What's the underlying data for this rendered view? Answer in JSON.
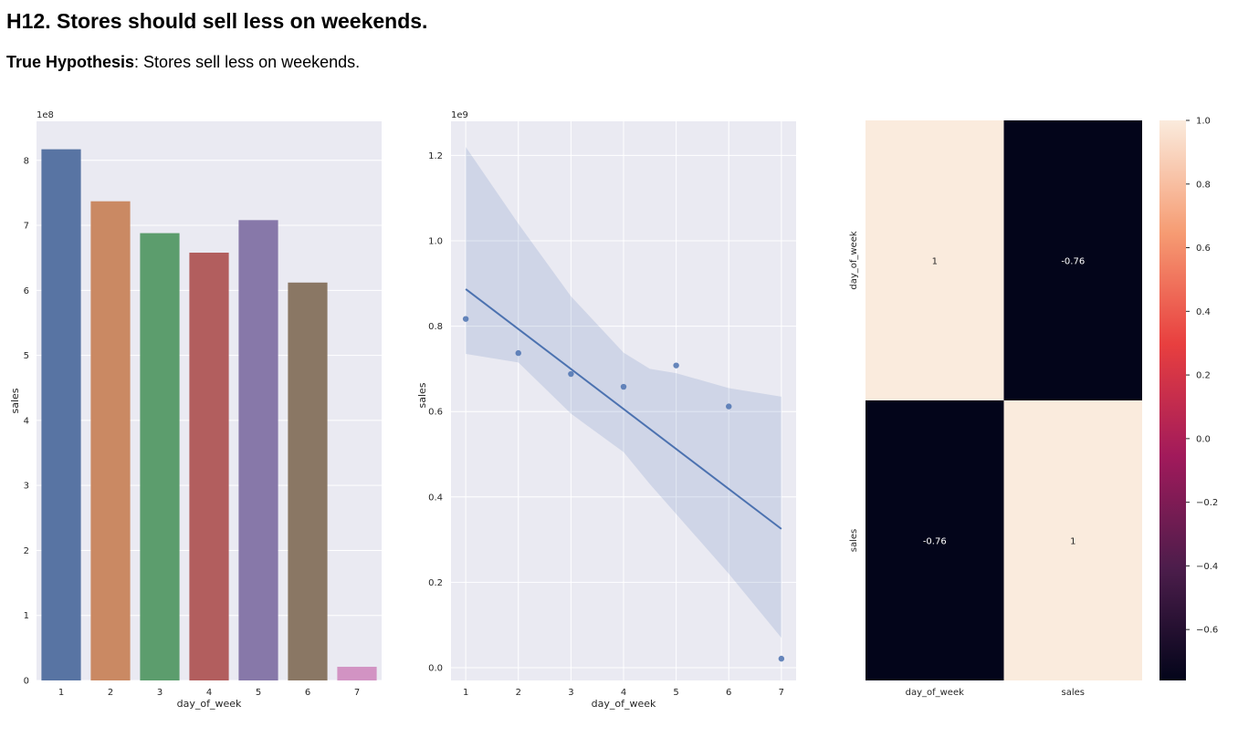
{
  "heading": "H12. Stores should sell less on weekends.",
  "conclusion": {
    "label": "True Hypothesis",
    "text": ": Stores sell less on weekends."
  },
  "chart_data": [
    {
      "type": "bar",
      "xlabel": "day_of_week",
      "ylabel": "sales",
      "offset_text": "1e8",
      "categories": [
        "1",
        "2",
        "3",
        "4",
        "5",
        "6",
        "7"
      ],
      "values": [
        8.17,
        7.37,
        6.88,
        6.58,
        7.08,
        6.12,
        0.21
      ],
      "ylim": [
        0,
        8.6
      ],
      "yticks": [
        0,
        1,
        2,
        3,
        4,
        5,
        6,
        7,
        8
      ],
      "colors": [
        "#5874a3",
        "#ca8963",
        "#5c9d6d",
        "#b25e5e",
        "#8778a9",
        "#8a7764",
        "#d293c3"
      ],
      "grid": true
    },
    {
      "type": "scatter",
      "xlabel": "day_of_week",
      "ylabel": "sales",
      "offset_text": "1e9",
      "x": [
        1,
        2,
        3,
        4,
        5,
        6,
        7
      ],
      "y": [
        0.817,
        0.737,
        0.688,
        0.658,
        0.708,
        0.612,
        0.021
      ],
      "regression": {
        "x": [
          1,
          7
        ],
        "y": [
          0.887,
          0.325
        ]
      },
      "confidence_band": {
        "x": [
          1,
          2,
          3,
          4,
          4.5,
          5,
          6,
          7
        ],
        "upper": [
          1.22,
          1.04,
          0.87,
          0.738,
          0.7,
          0.69,
          0.655,
          0.635
        ],
        "lower": [
          0.735,
          0.715,
          0.595,
          0.505,
          0.43,
          0.36,
          0.22,
          0.07
        ]
      },
      "xlim": [
        0.72,
        7.28
      ],
      "ylim": [
        -0.03,
        1.28
      ],
      "xticks": [
        1,
        2,
        3,
        4,
        5,
        6,
        7
      ],
      "yticks": [
        "0.0",
        "0.2",
        "0.4",
        "0.6",
        "0.8",
        "1.0",
        "1.2"
      ],
      "color": "#4c72b0",
      "grid": true
    },
    {
      "type": "heatmap",
      "rows": [
        "day_of_week",
        "sales"
      ],
      "columns": [
        "day_of_week",
        "sales"
      ],
      "values": [
        [
          1,
          -0.76
        ],
        [
          -0.76,
          1
        ]
      ],
      "annotations": [
        [
          "1",
          "-0.76"
        ],
        [
          "-0.76",
          "1"
        ]
      ],
      "colorbar": {
        "range": [
          -0.76,
          1.0
        ],
        "ticks": [
          "1.0",
          "0.8",
          "0.6",
          "0.4",
          "0.2",
          "0.0",
          "−0.2",
          "−0.4",
          "−0.6"
        ],
        "colors": [
          "#03051a",
          "#4c1d4b",
          "#a11a5b",
          "#e83f3f",
          "#f69c73",
          "#faebdd"
        ]
      }
    }
  ]
}
